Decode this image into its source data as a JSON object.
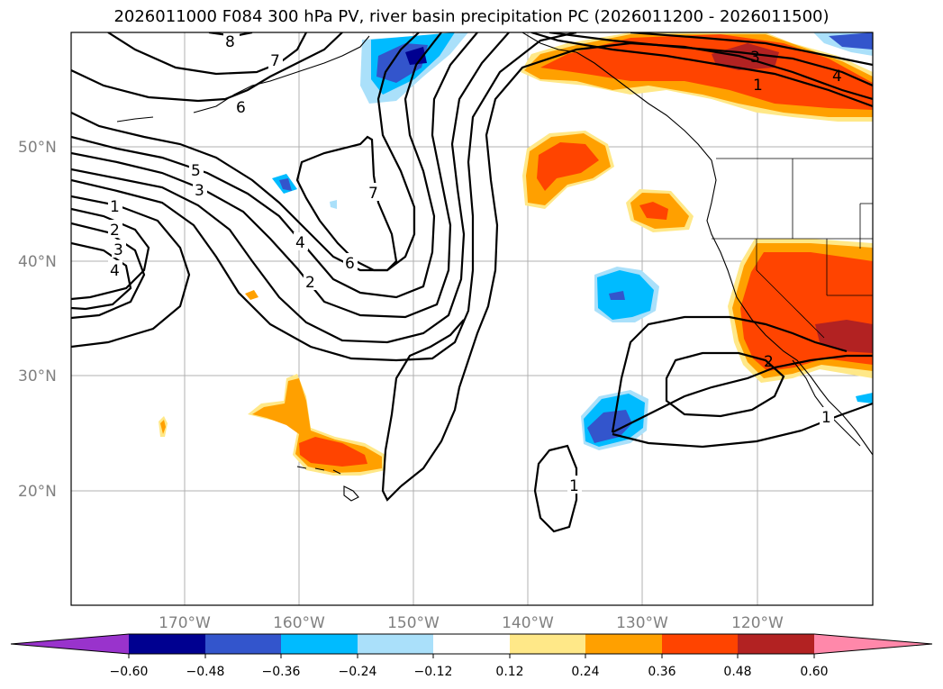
{
  "title": "2026011000 F084 300 hPa PV, river basin precipitation PC (2026011200 - 2026011500)",
  "map": {
    "lat_labels": [
      "50°N",
      "40°N",
      "30°N",
      "20°N"
    ],
    "lon_labels": [
      "170°W",
      "160°W",
      "150°W",
      "140°W",
      "130°W",
      "120°W"
    ],
    "contour_labels": [
      "8",
      "7",
      "6",
      "5",
      "3",
      "1",
      "2",
      "3",
      "4",
      "4",
      "6",
      "2",
      "7",
      "3",
      "4",
      "1",
      "2",
      "1",
      "1"
    ]
  },
  "colorbar": {
    "ticks": [
      "−0.60",
      "−0.48",
      "−0.36",
      "−0.24",
      "−0.12",
      "0.12",
      "0.24",
      "0.36",
      "0.48",
      "0.60"
    ],
    "colors": [
      "#9933cc",
      "#000090",
      "#3355cc",
      "#00bbff",
      "#aae0fa",
      "#ffffff",
      "#ffe888",
      "#ffa000",
      "#ff4400",
      "#b22222",
      "#ff88aa"
    ]
  }
}
